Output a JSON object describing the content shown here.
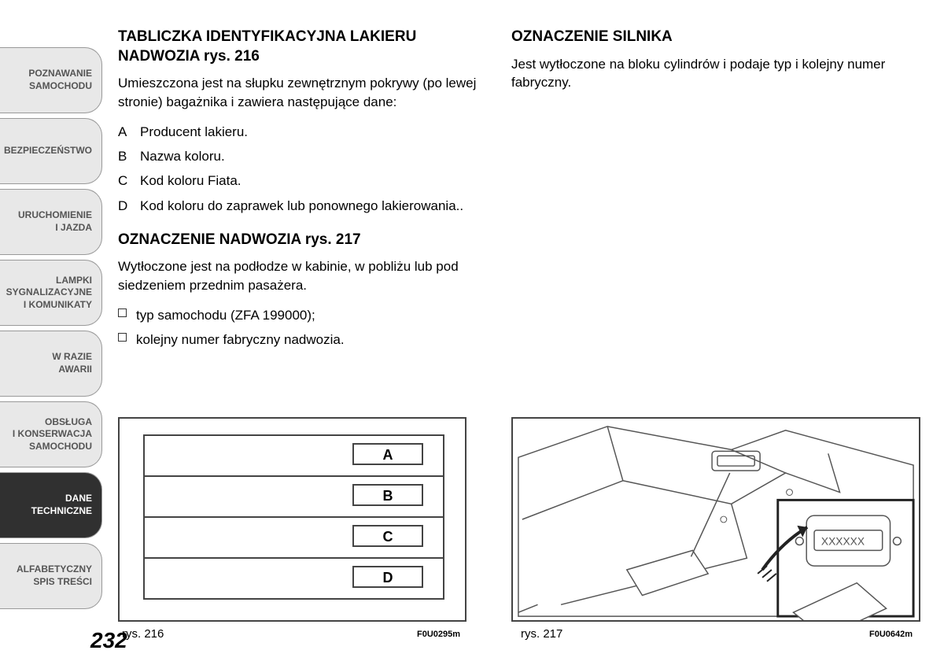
{
  "sidebar": {
    "tabs": [
      {
        "label": "POZNAWANIE\nSAMOCHODU",
        "active": false
      },
      {
        "label": "BEZPIECZEŃSTWO",
        "active": false
      },
      {
        "label": "URUCHOMIENIE\nI JAZDA",
        "active": false
      },
      {
        "label": "LAMPKI\nSYGNALIZACYJNE\nI KOMUNIKATY",
        "active": false
      },
      {
        "label": "W RAZIE\nAWARII",
        "active": false
      },
      {
        "label": "OBSŁUGA\nI KONSERWACJA\nSAMOCHODU",
        "active": false
      },
      {
        "label": "DANE\nTECHNICZNE",
        "active": true
      },
      {
        "label": "ALFABETYCZNY\nSPIS TREŚCI",
        "active": false
      }
    ]
  },
  "left_col": {
    "h1": "TABLICZKA IDENTYFIKACYJNA LAKIERU NADWOZIA rys. 216",
    "p1": "Umieszczona jest na słupku zewnętrznym pokrywy (po lewej stronie) bagażnika i zawiera następujące dane:",
    "items": [
      {
        "letter": "A",
        "text": "Producent lakieru."
      },
      {
        "letter": "B",
        "text": "Nazwa koloru."
      },
      {
        "letter": "C",
        "text": "Kod koloru Fiata."
      },
      {
        "letter": "D",
        "text": "Kod koloru do zaprawek lub ponownego lakierowania.."
      }
    ],
    "h2": "OZNACZENIE NADWOZIA rys. 217",
    "p2": "Wytłoczone jest na podłodze w kabinie, w pobliżu lub pod siedzeniem przednim pasażera.",
    "bullets": [
      "typ samochodu (ZFA 199000);",
      "kolejny numer fabryczny nadwozia."
    ]
  },
  "right_col": {
    "h1": "OZNACZENIE SILNIKA",
    "p1": "Jest wytłoczone na bloku cylindrów i podaje typ i kolejny numer fabryczny."
  },
  "fig_left": {
    "caption": "rys. 216",
    "code": "F0U0295m",
    "labels": [
      "A",
      "B",
      "C",
      "D"
    ]
  },
  "fig_right": {
    "caption": "rys. 217",
    "code": "F0U0642m",
    "stamp_text": "XXXXXX"
  },
  "page_number": "232",
  "colors": {
    "tab_bg": "#e8e8e8",
    "tab_active_bg": "#303030",
    "tab_border": "#999999",
    "text": "#222222",
    "figure_border": "#444444"
  }
}
